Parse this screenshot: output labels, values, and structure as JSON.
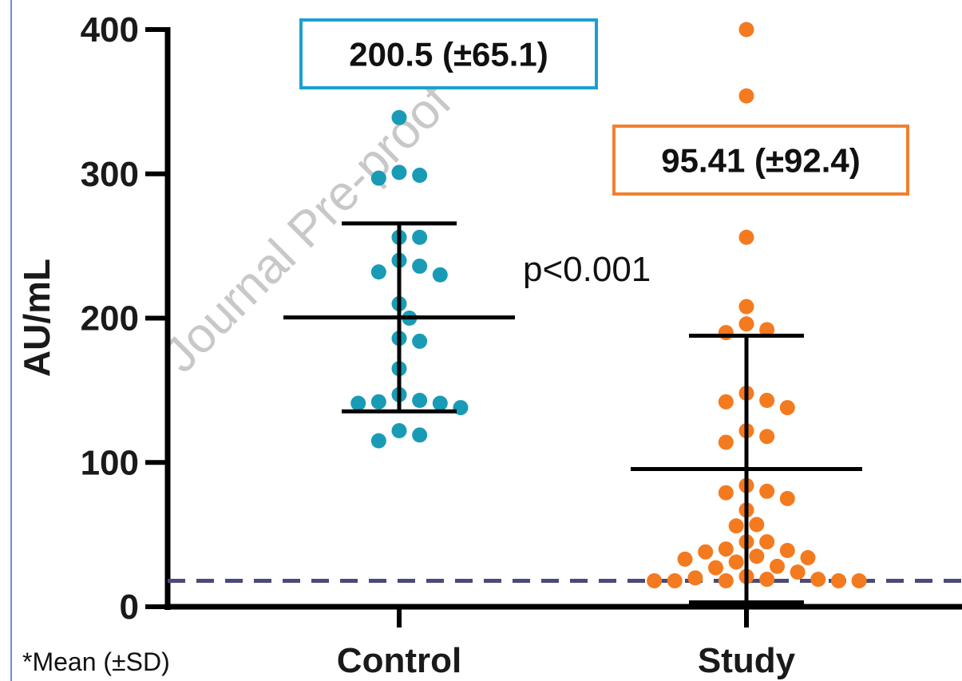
{
  "chart_data": {
    "type": "scatter",
    "title": "",
    "xlabel": "",
    "ylabel": "AU/mL",
    "ylim": [
      0,
      400
    ],
    "yticks": [
      0,
      100,
      200,
      300,
      400
    ],
    "categories": [
      "Control",
      "Study"
    ],
    "series": [
      {
        "category": "Control",
        "color": "#1a9bb5",
        "mean": 200.5,
        "sd": 65.1,
        "mean_label": "200.5 (±65.1)",
        "box_color": "#1aa0d0",
        "values": [
          339,
          297,
          301,
          299,
          256,
          256,
          236,
          240,
          232,
          230,
          210,
          200,
          184,
          186,
          165,
          147,
          141,
          142,
          143,
          138,
          141,
          122,
          115,
          119
        ]
      },
      {
        "category": "Study",
        "color": "#f47a20",
        "mean": 95.41,
        "sd": 92.4,
        "mean_label": "95.41 (±92.4)",
        "box_color": "#f08030",
        "values": [
          400,
          354,
          256,
          208,
          196,
          190,
          192,
          148,
          143,
          142,
          138,
          122,
          118,
          114,
          84,
          79,
          80,
          75,
          67,
          57,
          56,
          45,
          45,
          40,
          39,
          38,
          35,
          34,
          33,
          31,
          28,
          27,
          24,
          21,
          20,
          19,
          19,
          18,
          18,
          18,
          18,
          18
        ]
      }
    ],
    "reference_line": {
      "value": 18,
      "style": "dashed",
      "color": "#4a4a7a"
    },
    "annotations": {
      "p_value": "p<0.001",
      "footnote": "*Mean (±SD)"
    },
    "watermark": "Journal Pre-proof",
    "grid": false,
    "legend": "none"
  }
}
